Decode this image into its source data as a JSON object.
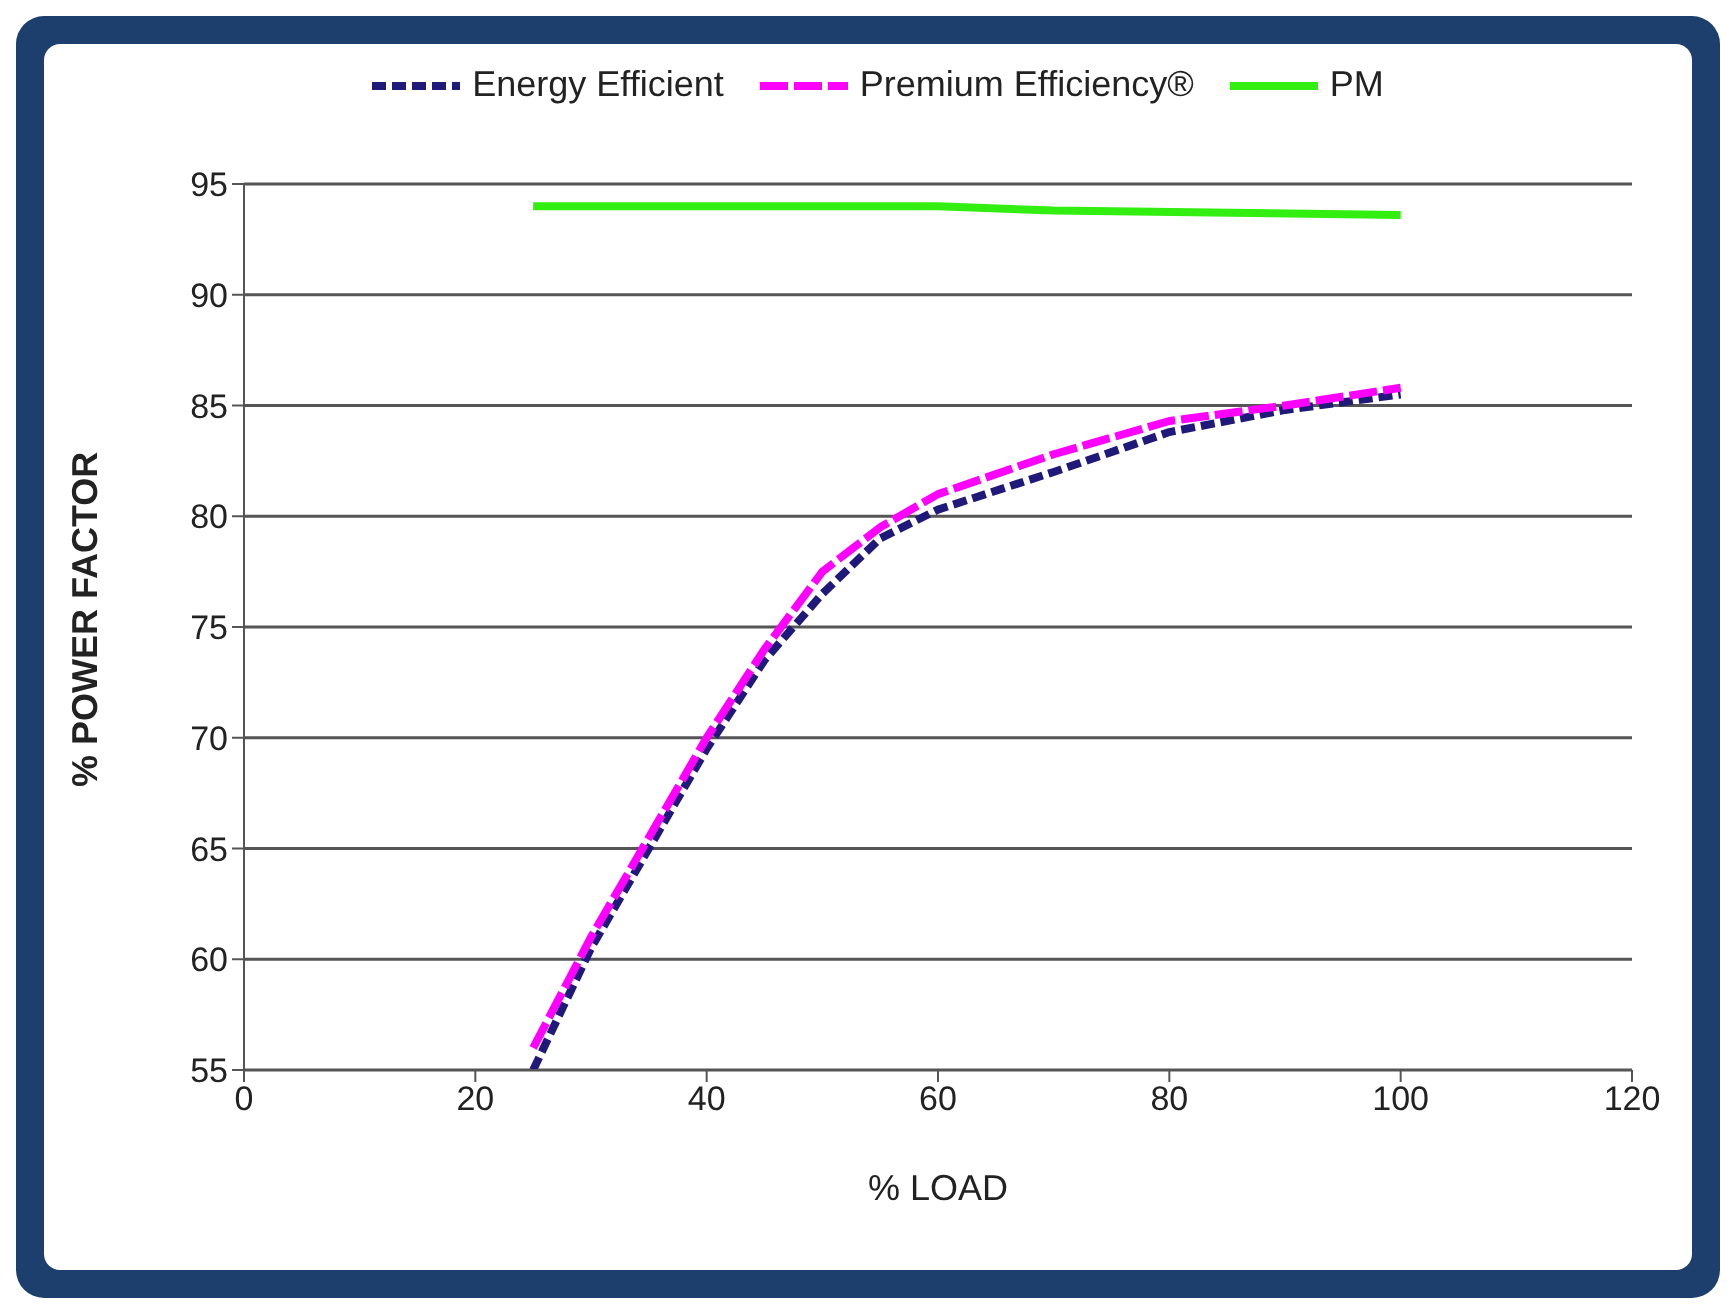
{
  "chart_data": {
    "type": "line",
    "xlabel": "% LOAD",
    "ylabel": "% POWER FACTOR",
    "xlim": [
      0,
      120
    ],
    "xticks": [
      0,
      20,
      40,
      60,
      80,
      100,
      120
    ],
    "ylim": [
      55,
      95
    ],
    "yticks": [
      55,
      60,
      65,
      70,
      75,
      80,
      85,
      90,
      95
    ],
    "grid": "y",
    "legend": "top",
    "marker": "none",
    "series": [
      {
        "name": "Energy Efficient",
        "color": "#1f1a7a",
        "line_style": "dashed",
        "x": [
          25,
          30,
          35,
          40,
          45,
          50,
          55,
          60,
          70,
          80,
          90,
          100
        ],
        "values": [
          55,
          60.5,
          65,
          69.5,
          73.5,
          76.5,
          79,
          80.3,
          82,
          83.8,
          84.8,
          85.5
        ]
      },
      {
        "name": "Premium Efficiency®",
        "color": "#ff00ff",
        "line_style": "dashed",
        "x": [
          25,
          30,
          35,
          40,
          45,
          50,
          55,
          60,
          70,
          80,
          90,
          100
        ],
        "values": [
          56,
          61,
          65.5,
          70,
          74,
          77.5,
          79.5,
          81,
          82.8,
          84.3,
          85,
          85.8
        ]
      },
      {
        "name": "PM",
        "color": "#33ee11",
        "line_style": "solid",
        "x": [
          25,
          60,
          70,
          100
        ],
        "values": [
          94,
          94,
          93.8,
          93.6
        ]
      }
    ]
  }
}
